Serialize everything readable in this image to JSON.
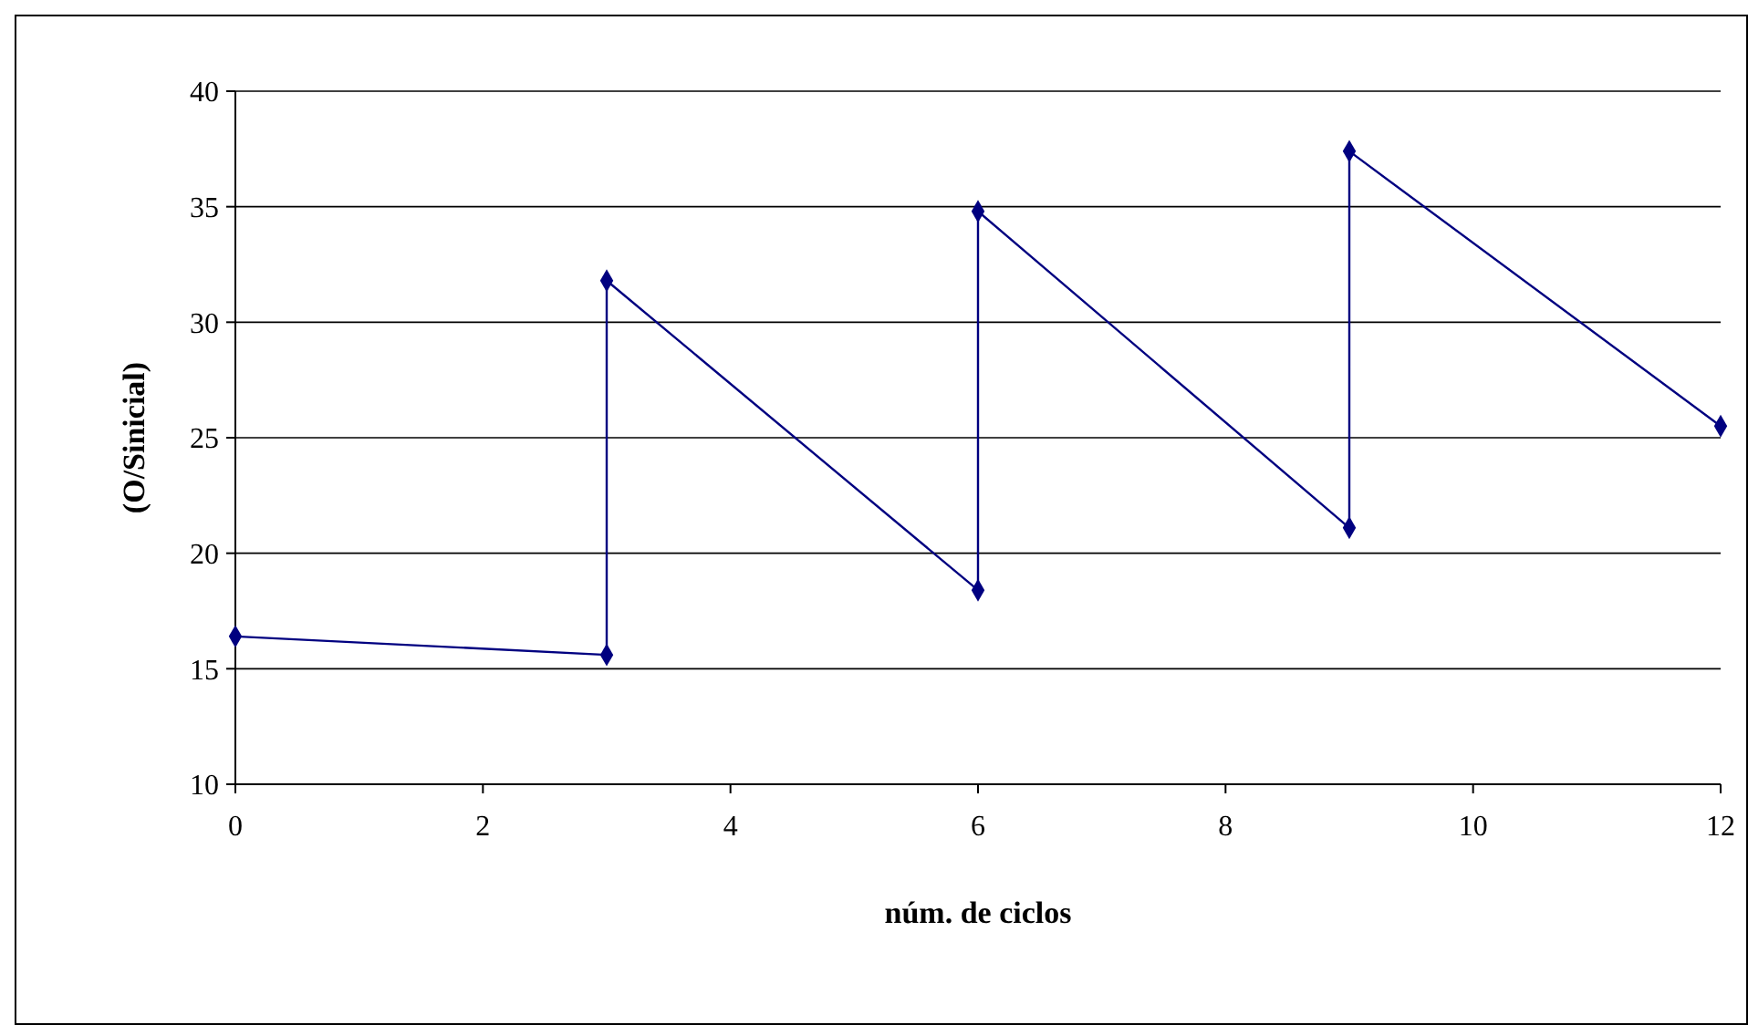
{
  "chart_data": {
    "type": "line",
    "xlabel": "núm. de ciclos",
    "ylabel": "(O/Sinicial)",
    "series": [
      {
        "color": "#000080",
        "x": [
          0,
          3,
          3,
          6,
          6,
          9,
          9,
          12
        ],
        "values": [
          16.4,
          15.6,
          31.8,
          18.4,
          34.8,
          21.1,
          37.4,
          25.5
        ]
      }
    ],
    "xlim": [
      0,
      12
    ],
    "xticks": [
      0,
      2,
      4,
      6,
      8,
      10,
      12
    ],
    "ylim": [
      10,
      40
    ],
    "yticks": [
      10,
      15,
      20,
      25,
      30,
      35,
      40
    ],
    "grid": "y",
    "marker": "diamond",
    "line_style": "solid"
  }
}
